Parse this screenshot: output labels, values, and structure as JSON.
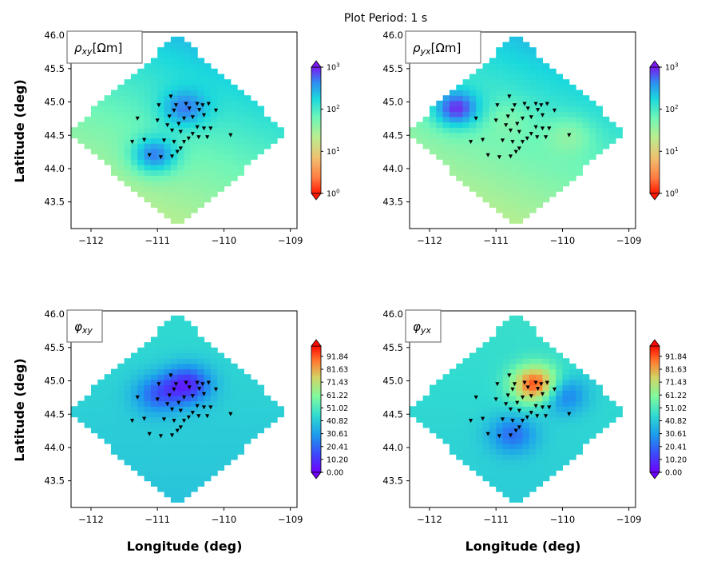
{
  "figure": {
    "suptitle": "Plot Period: 1 s",
    "xlabel": "Longitude (deg)",
    "ylabel": "Latitude (deg)"
  },
  "chart_data": [
    {
      "type": "heatmap",
      "panel": "rho_xy",
      "title": "ρxy[Ωm]",
      "title_main": "ρ",
      "title_sub": "xy",
      "title_unit": "[Ωm]",
      "xlim": [
        -112.3,
        -108.9
      ],
      "ylim": [
        43.1,
        46.05
      ],
      "xticks": [
        "−112",
        "−111",
        "−110",
        "−109"
      ],
      "yticks": [
        "43.5",
        "44.0",
        "44.5",
        "45.0",
        "45.5",
        "46.0"
      ],
      "colormap": "rainbow_r (log scale)",
      "colorbar_range": [
        1,
        1000
      ],
      "colorbar_ticks": [
        "10^0",
        "10^1",
        "10^2",
        "10^3"
      ],
      "show_xlabel": false,
      "show_ylabel": true,
      "anomalies": [
        {
          "x": -111.05,
          "y": 44.2,
          "level": 0.95
        },
        {
          "x": -110.6,
          "y": 44.9,
          "level": 0.85
        }
      ],
      "base_level": 0.62
    },
    {
      "type": "heatmap",
      "panel": "rho_yx",
      "title": "ρyx[Ωm]",
      "title_main": "ρ",
      "title_sub": "yx",
      "title_unit": "[Ωm]",
      "xlim": [
        -112.3,
        -108.9
      ],
      "ylim": [
        43.1,
        46.05
      ],
      "xticks": [
        "−112",
        "−111",
        "−110",
        "−109"
      ],
      "yticks": [
        "43.5",
        "44.0",
        "44.5",
        "45.0",
        "45.5",
        "46.0"
      ],
      "colormap": "rainbow_r (log scale)",
      "colorbar_range": [
        1,
        1000
      ],
      "colorbar_ticks": [
        "10^0",
        "10^1",
        "10^2",
        "10^3"
      ],
      "show_xlabel": false,
      "show_ylabel": false,
      "anomalies": [
        {
          "x": -111.6,
          "y": 44.9,
          "level": 0.98
        },
        {
          "x": -110.8,
          "y": 44.75,
          "level": 0.55
        },
        {
          "x": -109.9,
          "y": 44.5,
          "level": 0.5
        }
      ],
      "base_level": 0.62
    },
    {
      "type": "heatmap",
      "panel": "phi_xy",
      "title": "φxy",
      "title_main": "φ",
      "title_sub": "xy",
      "title_unit": "",
      "xlim": [
        -112.3,
        -108.9
      ],
      "ylim": [
        43.1,
        46.05
      ],
      "xticks": [
        "−112",
        "−111",
        "−110",
        "−109"
      ],
      "yticks": [
        "43.5",
        "44.0",
        "44.5",
        "45.0",
        "45.5",
        "46.0"
      ],
      "colormap": "rainbow (linear, degrees)",
      "colorbar_range": [
        0,
        100
      ],
      "colorbar_ticks": [
        "0.00",
        "10.20",
        "20.41",
        "30.61",
        "40.82",
        "51.02",
        "61.22",
        "71.43",
        "81.63",
        "91.84"
      ],
      "show_xlabel": true,
      "show_ylabel": true,
      "anomalies": [
        {
          "x": -110.55,
          "y": 44.95,
          "level": 0.08
        },
        {
          "x": -111.0,
          "y": 44.8,
          "level": 0.2
        }
      ],
      "base_level": 0.42
    },
    {
      "type": "heatmap",
      "panel": "phi_yx",
      "title": "φyx",
      "title_main": "φ",
      "title_sub": "yx",
      "title_unit": "",
      "xlim": [
        -112.3,
        -108.9
      ],
      "ylim": [
        43.1,
        46.05
      ],
      "xticks": [
        "−112",
        "−111",
        "−110",
        "−109"
      ],
      "yticks": [
        "43.5",
        "44.0",
        "44.5",
        "45.0",
        "45.5",
        "46.0"
      ],
      "colormap": "rainbow (linear, degrees)",
      "colorbar_range": [
        0,
        100
      ],
      "colorbar_ticks": [
        "0.00",
        "10.20",
        "20.41",
        "30.61",
        "40.82",
        "51.02",
        "61.22",
        "71.43",
        "81.63",
        "91.84"
      ],
      "show_xlabel": true,
      "show_ylabel": false,
      "anomalies": [
        {
          "x": -110.4,
          "y": 44.95,
          "level": 0.95
        },
        {
          "x": -110.0,
          "y": 44.8,
          "level": 0.2
        },
        {
          "x": -110.75,
          "y": 44.2,
          "level": 0.22
        }
      ],
      "base_level": 0.44
    }
  ],
  "stations": [
    {
      "x": -110.8,
      "y": 45.08
    },
    {
      "x": -110.98,
      "y": 44.95
    },
    {
      "x": -110.72,
      "y": 44.95
    },
    {
      "x": -110.57,
      "y": 44.97
    },
    {
      "x": -110.4,
      "y": 44.97
    },
    {
      "x": -110.32,
      "y": 44.95
    },
    {
      "x": -110.23,
      "y": 44.97
    },
    {
      "x": -110.75,
      "y": 44.87
    },
    {
      "x": -110.52,
      "y": 44.9
    },
    {
      "x": -110.37,
      "y": 44.88
    },
    {
      "x": -110.12,
      "y": 44.87
    },
    {
      "x": -111.3,
      "y": 44.75
    },
    {
      "x": -111.0,
      "y": 44.72
    },
    {
      "x": -110.82,
      "y": 44.78
    },
    {
      "x": -110.6,
      "y": 44.75
    },
    {
      "x": -110.47,
      "y": 44.77
    },
    {
      "x": -110.3,
      "y": 44.8
    },
    {
      "x": -110.85,
      "y": 44.65
    },
    {
      "x": -110.68,
      "y": 44.67
    },
    {
      "x": -110.4,
      "y": 44.62
    },
    {
      "x": -110.3,
      "y": 44.6
    },
    {
      "x": -110.2,
      "y": 44.6
    },
    {
      "x": -109.9,
      "y": 44.5
    },
    {
      "x": -110.78,
      "y": 44.57
    },
    {
      "x": -110.65,
      "y": 44.55
    },
    {
      "x": -110.47,
      "y": 44.52
    },
    {
      "x": -110.38,
      "y": 44.47
    },
    {
      "x": -110.25,
      "y": 44.47
    },
    {
      "x": -111.38,
      "y": 44.4
    },
    {
      "x": -111.2,
      "y": 44.43
    },
    {
      "x": -110.9,
      "y": 44.42
    },
    {
      "x": -110.75,
      "y": 44.4
    },
    {
      "x": -110.6,
      "y": 44.4
    },
    {
      "x": -110.53,
      "y": 44.45
    },
    {
      "x": -110.65,
      "y": 44.3
    },
    {
      "x": -110.7,
      "y": 44.25
    },
    {
      "x": -111.12,
      "y": 44.2
    },
    {
      "x": -110.95,
      "y": 44.17
    },
    {
      "x": -110.78,
      "y": 44.18
    }
  ]
}
